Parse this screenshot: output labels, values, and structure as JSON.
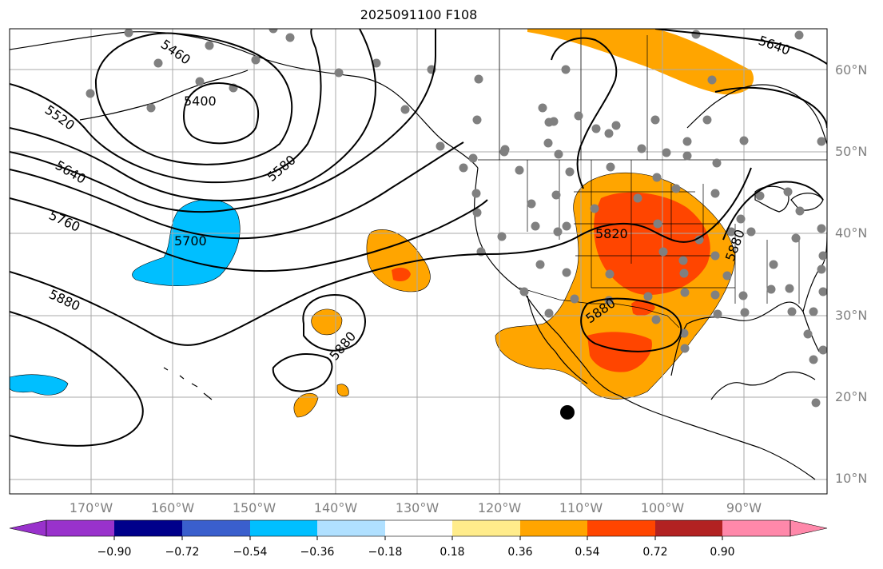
{
  "title": "2025091100 F108",
  "lat_labels": [
    "60°N",
    "50°N",
    "40°N",
    "30°N",
    "20°N",
    "10°N"
  ],
  "lon_labels": [
    "170°W",
    "160°W",
    "150°W",
    "140°W",
    "130°W",
    "120°W",
    "110°W",
    "100°W",
    "90°W"
  ],
  "contour_labels": [
    "5460",
    "5400",
    "5520",
    "5580",
    "5640",
    "5760",
    "5700",
    "5880",
    "5880",
    "5820",
    "5880",
    "5880",
    "5640"
  ],
  "colorbar": {
    "tick_labels": [
      "−0.90",
      "−0.72",
      "−0.54",
      "−0.36",
      "−0.18",
      "0.18",
      "0.36",
      "0.54",
      "0.72",
      "0.90"
    ],
    "colors": [
      "#9932cc",
      "#00008b",
      "#3a5fcd",
      "#00bfff",
      "#b0e0ff",
      "#ffffff",
      "#ffec8b",
      "#ffa500",
      "#ff4500",
      "#b22222",
      "#ff88aa"
    ]
  }
}
